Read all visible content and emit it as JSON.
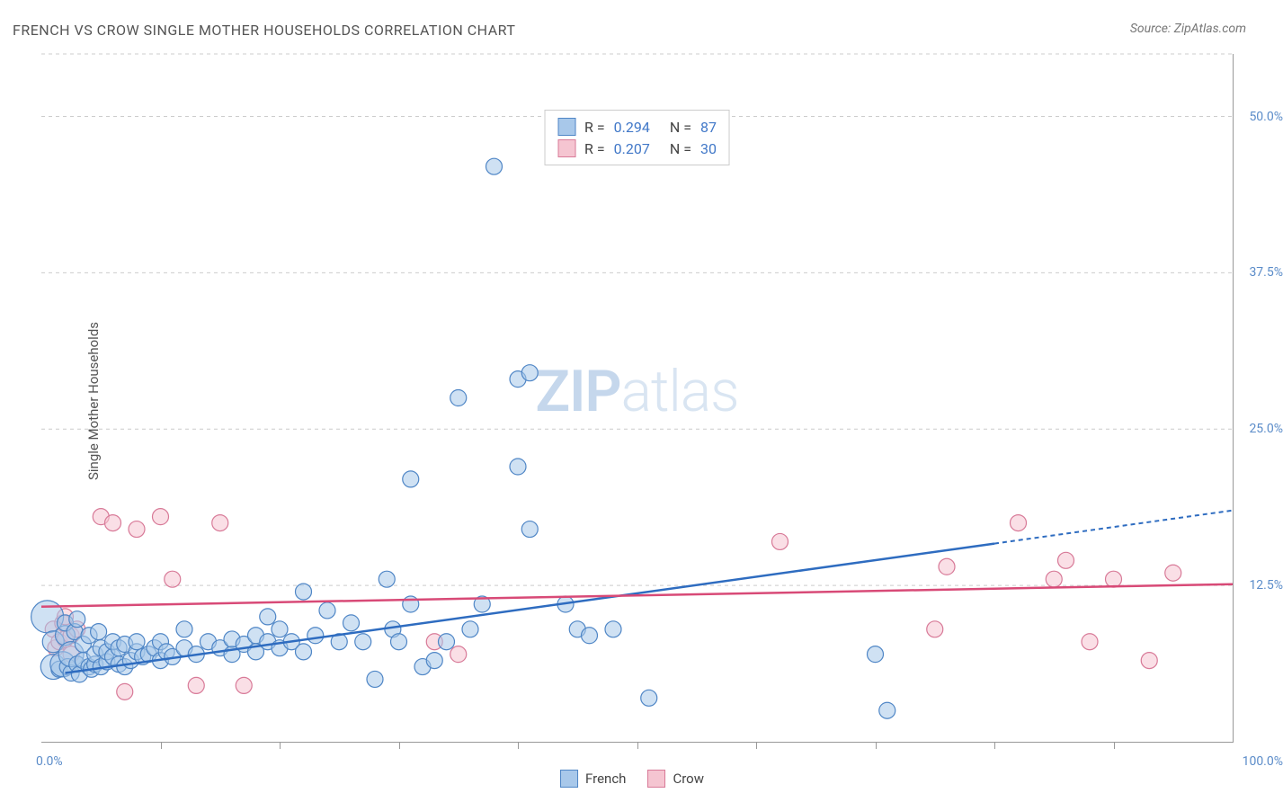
{
  "title": "FRENCH VS CROW SINGLE MOTHER HOUSEHOLDS CORRELATION CHART",
  "source": "Source: ZipAtlas.com",
  "ylabel": "Single Mother Households",
  "watermark": {
    "bold": "ZIP",
    "light": "atlas"
  },
  "axes": {
    "xlim": [
      0,
      100
    ],
    "ylim": [
      0,
      55
    ],
    "x_min_label": "0.0%",
    "x_max_label": "100.0%",
    "y_ticks": [
      {
        "v": 12.5,
        "label": "12.5%"
      },
      {
        "v": 25.0,
        "label": "25.0%"
      },
      {
        "v": 37.5,
        "label": "37.5%"
      },
      {
        "v": 50.0,
        "label": "50.0%"
      }
    ],
    "x_tick_positions": [
      10,
      20,
      30,
      40,
      50,
      60,
      70,
      80,
      90
    ],
    "grid_color": "#cccccc",
    "axis_color": "#999999",
    "tick_label_color": "#5b8cc9"
  },
  "colors": {
    "french_fill": "#a8c8ea",
    "french_stroke": "#4f86c6",
    "crow_fill": "#f5c5d1",
    "crow_stroke": "#d87a98",
    "french_line": "#2e6cc0",
    "crow_line": "#d84a77"
  },
  "stats_legend": [
    {
      "color_key": "french",
      "r_label": "R =",
      "r_val": "0.294",
      "n_label": "N =",
      "n_val": "87"
    },
    {
      "color_key": "crow",
      "r_label": "R =",
      "r_val": "0.207",
      "n_label": "N =",
      "n_val": "30"
    }
  ],
  "bottom_legend": [
    {
      "color_key": "french",
      "label": "French"
    },
    {
      "color_key": "crow",
      "label": "Crow"
    }
  ],
  "trend_lines": {
    "french": {
      "x1": 2,
      "y1": 5.5,
      "x_solid_end": 80,
      "x2": 100,
      "y2": 18.5
    },
    "crow": {
      "x1": 0,
      "y1": 10.8,
      "x2": 100,
      "y2": 12.6
    }
  },
  "marker_radius": 9,
  "marker_opacity": 0.55,
  "series": {
    "french": [
      [
        0.5,
        10,
        18
      ],
      [
        1,
        6,
        14
      ],
      [
        1,
        8,
        12
      ],
      [
        1.5,
        5.8
      ],
      [
        1.8,
        6.2,
        14
      ],
      [
        2,
        8.5,
        11
      ],
      [
        2,
        9.5
      ],
      [
        2.2,
        6
      ],
      [
        2.5,
        5.5
      ],
      [
        2.5,
        7,
        14
      ],
      [
        2.8,
        8.8
      ],
      [
        3,
        6.2
      ],
      [
        3,
        9.8
      ],
      [
        3.2,
        5.4
      ],
      [
        3.5,
        6.5
      ],
      [
        3.5,
        7.8
      ],
      [
        4,
        6
      ],
      [
        4,
        8.5
      ],
      [
        4.2,
        5.8
      ],
      [
        4.5,
        6.2
      ],
      [
        4.5,
        7
      ],
      [
        4.8,
        8.8
      ],
      [
        5,
        6
      ],
      [
        5,
        7.5
      ],
      [
        5.5,
        6.4
      ],
      [
        5.5,
        7.2
      ],
      [
        6,
        6.8
      ],
      [
        6,
        8
      ],
      [
        6.5,
        6.2
      ],
      [
        6.5,
        7.5
      ],
      [
        7,
        6
      ],
      [
        7,
        7.8
      ],
      [
        7.5,
        6.5
      ],
      [
        8,
        7.2
      ],
      [
        8,
        8
      ],
      [
        8.5,
        6.8
      ],
      [
        9,
        7
      ],
      [
        9.5,
        7.5
      ],
      [
        10,
        6.5
      ],
      [
        10,
        8
      ],
      [
        10.5,
        7.2
      ],
      [
        11,
        6.8
      ],
      [
        12,
        7.5
      ],
      [
        12,
        9
      ],
      [
        13,
        7
      ],
      [
        14,
        8
      ],
      [
        15,
        7.5
      ],
      [
        16,
        7
      ],
      [
        16,
        8.2
      ],
      [
        17,
        7.8
      ],
      [
        18,
        7.2
      ],
      [
        18,
        8.5
      ],
      [
        19,
        10
      ],
      [
        19,
        8
      ],
      [
        20,
        7.5
      ],
      [
        20,
        9
      ],
      [
        21,
        8
      ],
      [
        22,
        7.2
      ],
      [
        22,
        12
      ],
      [
        23,
        8.5
      ],
      [
        24,
        10.5
      ],
      [
        25,
        8
      ],
      [
        26,
        9.5
      ],
      [
        27,
        8
      ],
      [
        28,
        5
      ],
      [
        29,
        13
      ],
      [
        29.5,
        9
      ],
      [
        30,
        8
      ],
      [
        31,
        11
      ],
      [
        31,
        21
      ],
      [
        32,
        6
      ],
      [
        33,
        6.5
      ],
      [
        34,
        8
      ],
      [
        35,
        27.5
      ],
      [
        36,
        9
      ],
      [
        37,
        11
      ],
      [
        38,
        46
      ],
      [
        40,
        22
      ],
      [
        40,
        29
      ],
      [
        41,
        29.5
      ],
      [
        41,
        17
      ],
      [
        44,
        11
      ],
      [
        45,
        9
      ],
      [
        46,
        8.5
      ],
      [
        48,
        9
      ],
      [
        51,
        3.5
      ],
      [
        70,
        7
      ],
      [
        71,
        2.5
      ]
    ],
    "crow": [
      [
        1,
        9
      ],
      [
        1.2,
        7.5
      ],
      [
        1.5,
        8
      ],
      [
        1.8,
        9.5
      ],
      [
        2,
        8.2
      ],
      [
        2,
        10
      ],
      [
        2.5,
        7
      ],
      [
        2.5,
        8.5
      ],
      [
        3,
        9
      ],
      [
        5,
        18
      ],
      [
        6,
        17.5
      ],
      [
        7,
        4
      ],
      [
        8,
        17
      ],
      [
        10,
        18
      ],
      [
        11,
        13
      ],
      [
        13,
        4.5
      ],
      [
        15,
        17.5
      ],
      [
        17,
        4.5
      ],
      [
        33,
        8
      ],
      [
        35,
        7
      ],
      [
        62,
        16
      ],
      [
        75,
        9
      ],
      [
        76,
        14
      ],
      [
        82,
        17.5
      ],
      [
        85,
        13
      ],
      [
        86,
        14.5
      ],
      [
        88,
        8
      ],
      [
        90,
        13
      ],
      [
        93,
        6.5
      ],
      [
        95,
        13.5
      ]
    ]
  }
}
